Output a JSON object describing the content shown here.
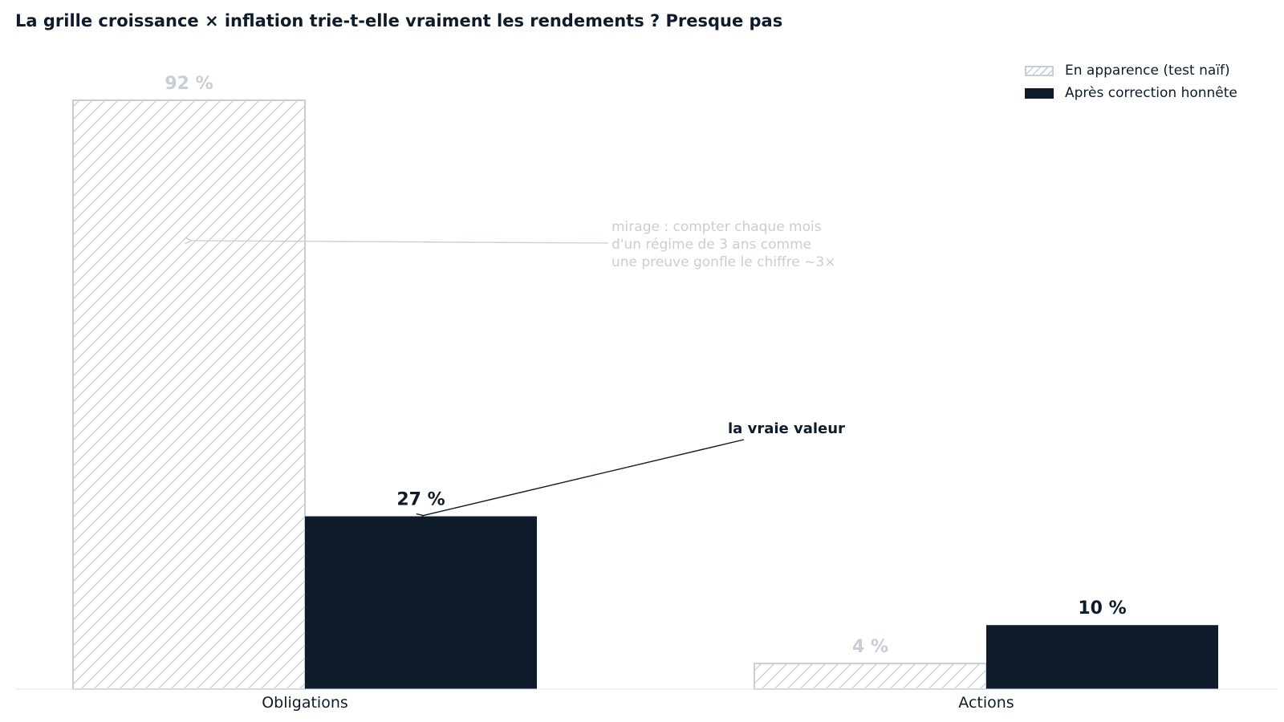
{
  "chart_data": {
    "type": "bar",
    "title": "La grille croissance × inflation trie-t-elle vraiment les rendements ? Presque pas",
    "categories": [
      "Obligations",
      "Actions"
    ],
    "series": [
      {
        "name": "En apparence (test naïf)",
        "values": [
          92,
          4
        ],
        "labels": [
          "92 %",
          "4 %"
        ],
        "style": "hatched",
        "color": "#c8ced6"
      },
      {
        "name": "Après correction honnête",
        "values": [
          27,
          10
        ],
        "labels": [
          "27 %",
          "10 %"
        ],
        "style": "solid",
        "color": "#0d1b2a"
      }
    ],
    "ylim": [
      0,
      100
    ],
    "grid": false,
    "legend_position": "top-right",
    "annotations": [
      {
        "text_lines": [
          "mirage : compter chaque mois",
          "d'un régime de 3 ans comme",
          "une preuve gonfle le chiffre ~3×"
        ],
        "target": "Obligations / En apparence (test naïf)",
        "color": "#c8ced6"
      },
      {
        "text_lines": [
          "la vraie valeur"
        ],
        "target": "Obligations / Après correction honnête",
        "color": "#0d1b2a"
      }
    ]
  },
  "colors": {
    "text": "#0d1b2a",
    "muted": "#c8ced6",
    "axis": "#e1e5ea"
  }
}
